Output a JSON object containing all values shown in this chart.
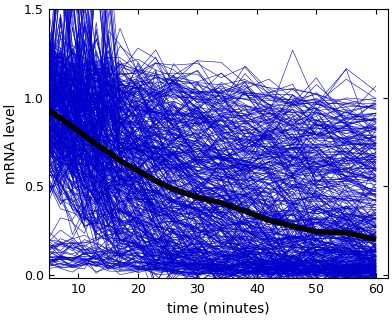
{
  "xlim": [
    5,
    62
  ],
  "ylim": [
    -0.02,
    1.5
  ],
  "xticks": [
    10,
    20,
    30,
    40,
    50,
    60
  ],
  "yticks": [
    0,
    0.5,
    1.0,
    1.5
  ],
  "xlabel": "time (minutes)",
  "ylabel": "mRNA level",
  "line_color": "#0000CC",
  "median_color": "#000000",
  "median_linewidth": 4.0,
  "individual_linewidth": 0.4,
  "individual_alpha": 1.0,
  "n_lines": 400,
  "background_color": "#ffffff",
  "seed": 7
}
